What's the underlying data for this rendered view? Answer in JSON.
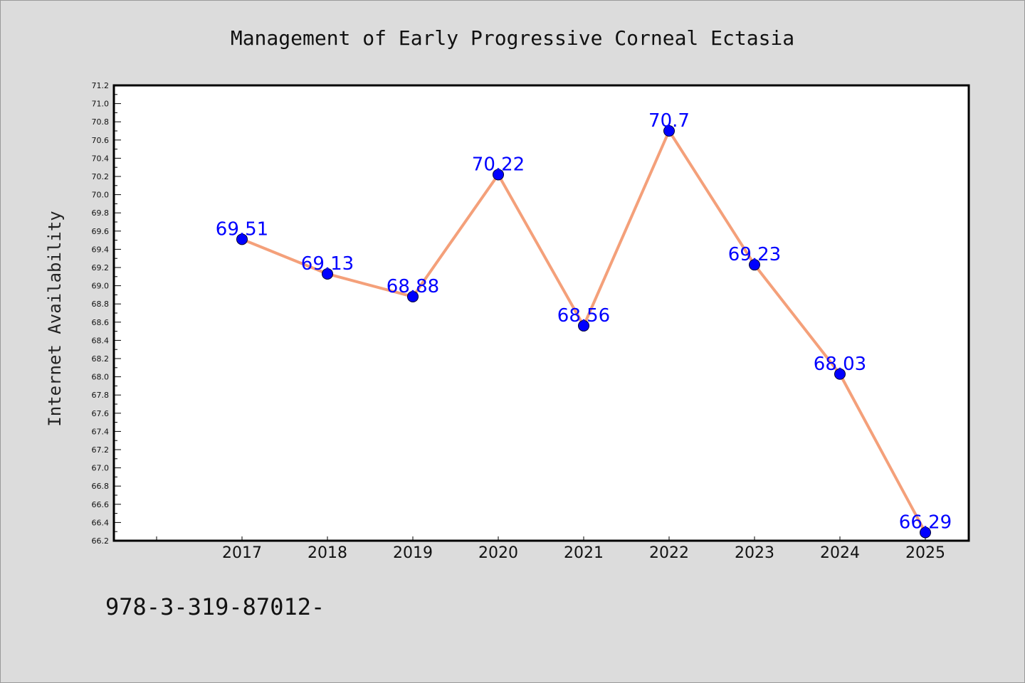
{
  "chart_data": {
    "type": "line",
    "title": "Management of Early Progressive Corneal Ectasia",
    "ylabel": "Internet Availability",
    "xlabel": "",
    "categories": [
      "2017",
      "2018",
      "2019",
      "2020",
      "2021",
      "2022",
      "2023",
      "2024",
      "2025"
    ],
    "values": [
      69.51,
      69.13,
      68.88,
      70.22,
      68.56,
      70.7,
      69.23,
      68.03,
      66.29
    ],
    "data_labels": [
      "69.51",
      "69.13",
      "68.88",
      "70.22",
      "68.56",
      "70.7",
      "69.23",
      "68.03",
      "66.29"
    ],
    "ylim": [
      66.2,
      71.2
    ],
    "yticks": [
      "66.2",
      "66.4",
      "66.6",
      "66.8",
      "67.0",
      "67.2",
      "67.4",
      "67.6",
      "67.8",
      "68.0",
      "68.2",
      "68.4",
      "68.6",
      "68.8",
      "69.0",
      "69.2",
      "69.4",
      "69.6",
      "69.8",
      "70.0",
      "70.2",
      "70.4",
      "70.6",
      "70.8",
      "71.0",
      "71.2"
    ],
    "grid": false,
    "line_color": "#f4a07a",
    "marker_color": "#0000ff",
    "label_color": "#0000ff"
  },
  "footer": {
    "text": "978-3-319-87012-"
  },
  "colors": {
    "background": "#dcdcdc",
    "plot_background": "#ffffff"
  }
}
